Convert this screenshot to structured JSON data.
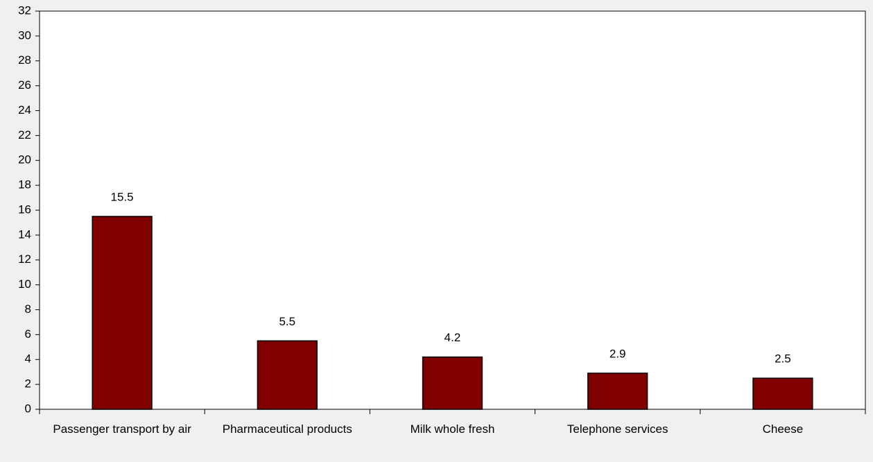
{
  "chart_data": {
    "type": "bar",
    "categories": [
      "Passenger transport by air",
      "Pharmaceutical products",
      "Milk whole fresh",
      "Telephone services",
      "Cheese"
    ],
    "values": [
      15.5,
      5.5,
      4.2,
      2.9,
      2.5
    ],
    "color": "#800000",
    "ylim": [
      0,
      32
    ],
    "yticks": [
      0,
      2,
      4,
      6,
      8,
      10,
      12,
      14,
      16,
      18,
      20,
      22,
      24,
      26,
      28,
      30,
      32
    ],
    "grid": false,
    "data_labels": true
  }
}
